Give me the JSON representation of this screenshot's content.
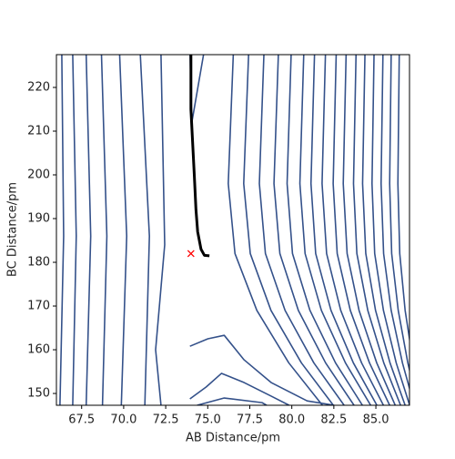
{
  "chart_data": {
    "type": "contour",
    "xlabel": "AB Distance/pm",
    "ylabel": "BC Distance/pm",
    "xlim": [
      66,
      87
    ],
    "ylim": [
      147.3,
      227.5
    ],
    "xticks": [
      67.5,
      {
        "value": 70,
        "label": "70.0"
      },
      72.5,
      {
        "value": 75,
        "label": "75.0"
      },
      77.5,
      {
        "value": 80,
        "label": "80.0"
      },
      82.5,
      {
        "value": 85,
        "label": "85.0"
      }
    ],
    "yticks": [
      150,
      160,
      170,
      180,
      190,
      200,
      210,
      220
    ],
    "contour_color": "#34518a",
    "contours": [
      {
        "x": [
          66.32,
          66.43,
          66.21
        ],
        "y": [
          227.5,
          186,
          147.3
        ]
      },
      {
        "x": [
          66.97,
          67.18,
          66.97
        ],
        "y": [
          227.5,
          186,
          147.3
        ]
      },
      {
        "x": [
          67.77,
          68.04,
          67.77
        ],
        "y": [
          227.5,
          186,
          147.3
        ]
      },
      {
        "x": [
          68.68,
          69.0,
          68.74
        ],
        "y": [
          227.5,
          186,
          147.3
        ]
      },
      {
        "x": [
          69.76,
          70.18,
          69.86
        ],
        "y": [
          227.5,
          186,
          147.3
        ]
      },
      {
        "x": [
          70.99,
          71.53,
          71.26
        ],
        "y": [
          227.5,
          186,
          147.3
        ]
      },
      {
        "x": [
          72.22,
          72.44,
          71.9,
          72.22
        ],
        "y": [
          227.5,
          184,
          160,
          147.3
        ]
      },
      {
        "x": [
          73.95,
          74.05,
          74.75
        ],
        "y": [
          227.5,
          211.9,
          227.5
        ]
      },
      {
        "x": [
          73.94,
          75.01,
          75.98,
          77.16,
          78.77,
          80.91,
          82.52
        ],
        "y": [
          160.8,
          162.5,
          163.3,
          157.7,
          152.5,
          148.3,
          147.3
        ]
      },
      {
        "x": [
          73.94,
          74.91,
          75.82,
          77.16,
          78.77,
          79.84
        ],
        "y": [
          148.75,
          151.5,
          154.6,
          152.5,
          149.4,
          147.3
        ]
      },
      {
        "x": [
          74.37,
          75.98,
          78.23,
          78.5
        ],
        "y": [
          147.3,
          148.96,
          147.9,
          147.3
        ]
      },
      {
        "x": [
          76.52,
          76.22,
          76.62,
          77.92,
          79.82,
          81.82
        ],
        "y": [
          227.5,
          198,
          182,
          169,
          157,
          147.3
        ]
      },
      {
        "x": [
          77.43,
          77.14,
          77.53,
          78.76,
          80.57,
          82.47
        ],
        "y": [
          227.5,
          198,
          182,
          169,
          157,
          147.3
        ]
      },
      {
        "x": [
          78.34,
          78.07,
          78.43,
          79.6,
          81.31,
          83.11
        ],
        "y": [
          227.5,
          198,
          182,
          169,
          157,
          147.3
        ]
      },
      {
        "x": [
          79.2,
          78.94,
          79.29,
          80.39,
          82.01,
          83.7
        ],
        "y": [
          227.5,
          198,
          182,
          169,
          157,
          147.3
        ]
      },
      {
        "x": [
          79.96,
          79.72,
          80.04,
          81.08,
          82.6,
          84.2
        ],
        "y": [
          227.5,
          198,
          182,
          169,
          157,
          147.3
        ]
      },
      {
        "x": [
          80.71,
          80.48,
          80.79,
          81.76,
          83.19,
          84.69
        ],
        "y": [
          227.5,
          198,
          182,
          169,
          157,
          147.3
        ]
      },
      {
        "x": [
          81.35,
          81.14,
          81.42,
          82.33,
          83.66,
          85.06
        ],
        "y": [
          227.5,
          198,
          182,
          169,
          157,
          147.3
        ]
      },
      {
        "x": [
          82.0,
          81.8,
          82.07,
          82.91,
          84.15,
          85.45
        ],
        "y": [
          227.5,
          198,
          182,
          169,
          157,
          147.3
        ]
      },
      {
        "x": [
          82.64,
          82.46,
          82.7,
          83.48,
          84.62,
          85.82
        ],
        "y": [
          227.5,
          198,
          182,
          169,
          157,
          147.3
        ]
      },
      {
        "x": [
          83.23,
          83.06,
          83.29,
          84.0,
          85.05,
          86.15
        ],
        "y": [
          227.5,
          198,
          182,
          169,
          157,
          147.3
        ]
      },
      {
        "x": [
          83.82,
          83.67,
          83.87,
          84.52,
          85.47,
          86.47
        ],
        "y": [
          227.5,
          198,
          182,
          169,
          157,
          147.3
        ]
      },
      {
        "x": [
          84.35,
          84.21,
          84.4,
          84.98,
          85.84,
          86.74
        ],
        "y": [
          227.5,
          198,
          182,
          169,
          157,
          147.3
        ]
      },
      {
        "x": [
          84.89,
          84.77,
          84.93,
          85.45,
          86.21,
          87.01
        ],
        "y": [
          227.5,
          198,
          182,
          169,
          157,
          147.3
        ]
      },
      {
        "x": [
          85.42,
          85.31,
          85.46,
          85.91,
          86.58,
          87.28
        ],
        "y": [
          227.5,
          198,
          182,
          169,
          157,
          147.3
        ]
      },
      {
        "x": [
          85.91,
          85.82,
          85.94,
          86.33,
          86.9,
          87.5
        ],
        "y": [
          227.5,
          198,
          182,
          169,
          157,
          147.3
        ]
      },
      {
        "x": [
          86.39,
          86.31,
          86.42,
          86.74,
          87.22,
          87.72
        ],
        "y": [
          227.5,
          198,
          182,
          169,
          157,
          147.3
        ]
      }
    ],
    "trajectory": {
      "color": "#000000",
      "x": [
        74.0,
        74.0,
        74.2,
        74.3,
        74.4,
        74.6,
        74.8,
        75.1
      ],
      "y": [
        227.5,
        215,
        200,
        192,
        187,
        183,
        181.6,
        181.5
      ]
    },
    "marker": {
      "color": "#ff0000",
      "x": 74,
      "y": 182
    }
  }
}
